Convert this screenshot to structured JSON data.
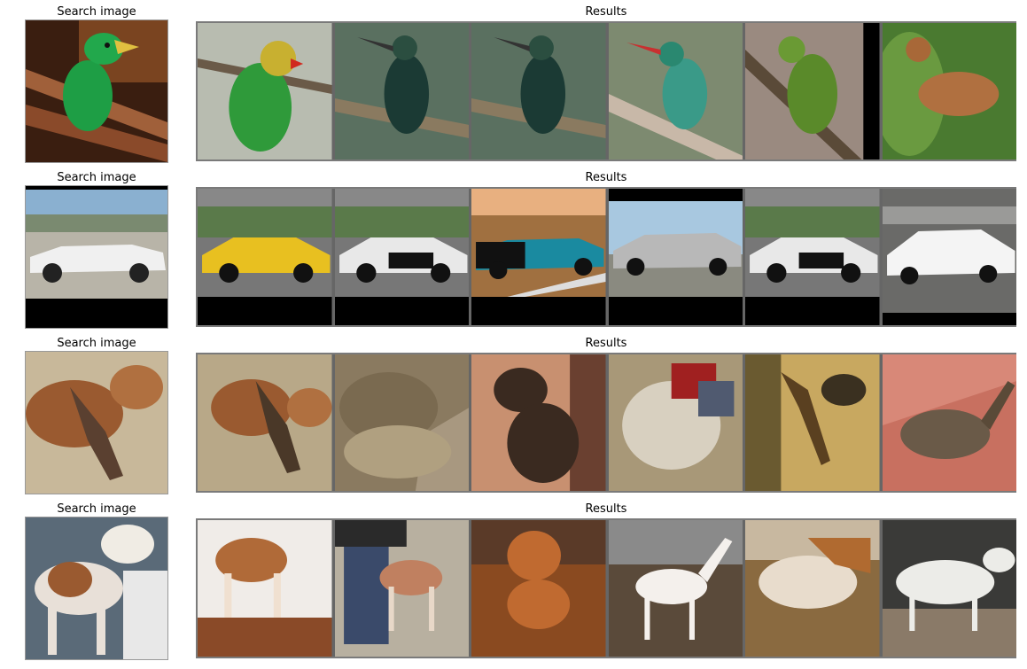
{
  "rows": [
    {
      "search_label": "Search image",
      "results_label": "Results",
      "query_icon": "green-toucanet-on-branch",
      "results": [
        {
          "icon": "lovebird-on-branch"
        },
        {
          "icon": "hummingbird-on-branch"
        },
        {
          "icon": "hummingbird-on-branch-duplicate"
        },
        {
          "icon": "hummingbird-red-beak"
        },
        {
          "icon": "green-parakeet"
        },
        {
          "icon": "brown-songbird"
        }
      ]
    },
    {
      "search_label": "Search image",
      "results_label": "Results",
      "query_icon": "white-convertible-car",
      "results": [
        {
          "icon": "yellow-race-car"
        },
        {
          "icon": "white-rally-car"
        },
        {
          "icon": "teal-classic-convertible"
        },
        {
          "icon": "silver-station-wagon"
        },
        {
          "icon": "white-rally-car-duplicate"
        },
        {
          "icon": "white-hatchback"
        }
      ]
    },
    {
      "search_label": "Search image",
      "results_label": "Results",
      "query_icon": "grazing-horses",
      "results": [
        {
          "icon": "grazing-horses"
        },
        {
          "icon": "sleeping-cat"
        },
        {
          "icon": "monkey"
        },
        {
          "icon": "rodeo-horse"
        },
        {
          "icon": "lizard"
        },
        {
          "icon": "mongoose"
        }
      ]
    },
    {
      "search_label": "Search image",
      "results_label": "Results",
      "query_icon": "hound-dog",
      "results": [
        {
          "icon": "brown-white-dog"
        },
        {
          "icon": "greyhound-with-person"
        },
        {
          "icon": "vizsla-puppy"
        },
        {
          "icon": "white-greyhound"
        },
        {
          "icon": "pony"
        },
        {
          "icon": "white-horse"
        }
      ]
    }
  ]
}
